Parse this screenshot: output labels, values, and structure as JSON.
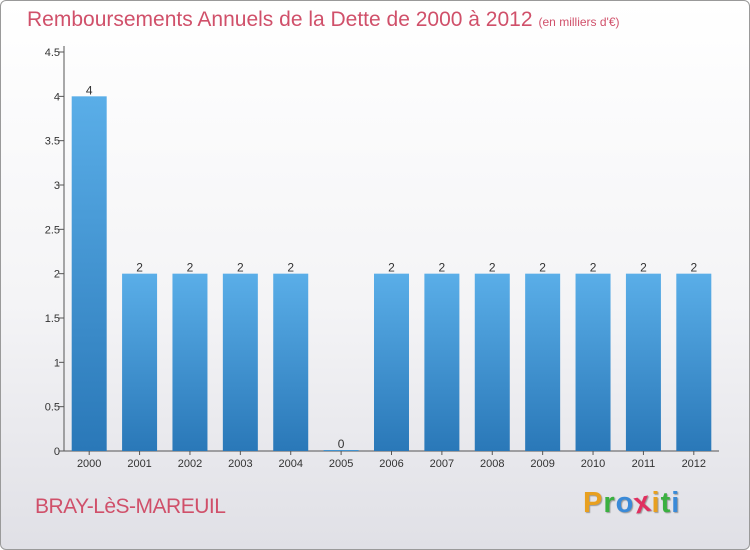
{
  "header": {
    "title": "Remboursements Annuels de la Dette de 2000 à 2012",
    "unit": "(en milliers d'€)"
  },
  "footer": {
    "commune": "BRAY-LèS-MAREUIL",
    "logo_letters": [
      "P",
      "r",
      "o",
      "x",
      "i",
      "t",
      "i"
    ],
    "logo_colors": [
      "#e8a020",
      "#3ab040",
      "#3a8ad8",
      "#e03060",
      "#e8a020",
      "#3ab040",
      "#3a8ad8"
    ]
  },
  "chart_data": {
    "type": "bar",
    "title": "Remboursements Annuels de la Dette de 2000 à 2012",
    "subtitle": "(en milliers d'€)",
    "categories": [
      "2000",
      "2001",
      "2002",
      "2003",
      "2004",
      "2005",
      "2006",
      "2007",
      "2008",
      "2009",
      "2010",
      "2011",
      "2012"
    ],
    "values": [
      4,
      2,
      2,
      2,
      2,
      0,
      2,
      2,
      2,
      2,
      2,
      2,
      2
    ],
    "value_labels": [
      "4",
      "2",
      "2",
      "2",
      "2",
      "0",
      "2",
      "2",
      "2",
      "2",
      "2",
      "2",
      "2"
    ],
    "y_ticks": [
      0,
      0.5,
      1,
      1.5,
      2,
      2.5,
      3,
      3.5,
      4,
      4.5
    ],
    "y_tick_labels": [
      "0",
      "0.5",
      "1",
      "1.5",
      "2",
      "2.5",
      "3",
      "3.5",
      "4",
      "4.5"
    ],
    "ylim": [
      0,
      4.5
    ],
    "xlabel": "",
    "ylabel": "",
    "bar_color_light": "#5aaee8",
    "bar_color_dark": "#2a78b8"
  }
}
